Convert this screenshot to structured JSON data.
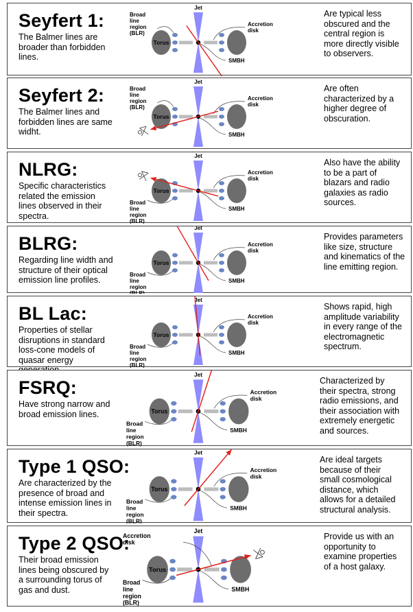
{
  "labels": {
    "jet": "Jet",
    "torus": "Torus",
    "smbh": "SMBH",
    "accretion": [
      "Accretion",
      "disk"
    ],
    "blr": [
      "Broad",
      "line",
      "region",
      "(BLR)"
    ]
  },
  "colors": {
    "torus": "#6d6d6d",
    "jet": "#8f8cff",
    "clouds": "#6a86c4",
    "disk": "#bdbdbd",
    "arrow": "#e0201c",
    "border": "#444444"
  },
  "rows": [
    {
      "title": "Seyfert 1:",
      "description": "The Balmer lines are broader than forbidden lines.",
      "remark": "Are typical less obscured and the central region is more directly visible to observers.",
      "view_angle_deg": -55,
      "blr_position": "upper-left",
      "accretion_position": "upper-right"
    },
    {
      "title": "Seyfert 2:",
      "description": "The Balmer lines and forbidden lines are same widht.",
      "remark": "Are often characterized by a higher degree of obscuration.",
      "view_angle_deg": -165,
      "blr_position": "upper-left",
      "accretion_position": "upper-right"
    },
    {
      "title": "NLRG:",
      "description": "Specific characteristics related the emission lines observed in their spectra.",
      "remark": "Also have the ability to be a part of blazars and radio galaxies as radio sources.",
      "view_angle_deg": 165,
      "blr_position": "lower-left",
      "accretion_position": "upper-right"
    },
    {
      "title": "BLRG:",
      "description": "Regarding line width and structure of their optical emission line profiles.",
      "remark": "Provides parameters like size, structure and kinematics of the line emitting region.",
      "view_angle_deg": 120,
      "blr_position": "lower-left",
      "accretion_position": "upper-right"
    },
    {
      "title": "BL Lac:",
      "description": "Properties of stellar disruptions in standard loss-cone models of quasar energy generation.",
      "remark": "Shows rapid, high amplitude variability in every range of the electromagnetic spectrum.",
      "view_angle_deg": 95,
      "blr_position": "lower-left",
      "accretion_position": "upper-right"
    },
    {
      "title": "FSRQ:",
      "description": "Have strong narrow and broad emission lines.",
      "remark": "Characterized by their spectra, strong radio emissions, and their association with extremely energetic and sources.",
      "view_angle_deg": 72,
      "blr_position": "lower-left",
      "accretion_position": "upper-right"
    },
    {
      "title": "Type 1 QSO:",
      "description": "Are characterized by the presence of broad and intense emission lines in their spectra.",
      "remark": "Are ideal targets because of their small cosmological distance, which allows for a detailed structural analysis.",
      "view_angle_deg": 50,
      "blr_position": "lower-left",
      "accretion_position": "upper-right"
    },
    {
      "title": "Type 2 QSO:",
      "description": "Their broad emission lines being obscured by a surrounding torus of gas and dust.",
      "remark": "Provide us with an opportunity to examine properties of a host galaxy.",
      "view_angle_deg": 15,
      "blr_position": "lower-left",
      "accretion_position": "upper-left"
    }
  ]
}
